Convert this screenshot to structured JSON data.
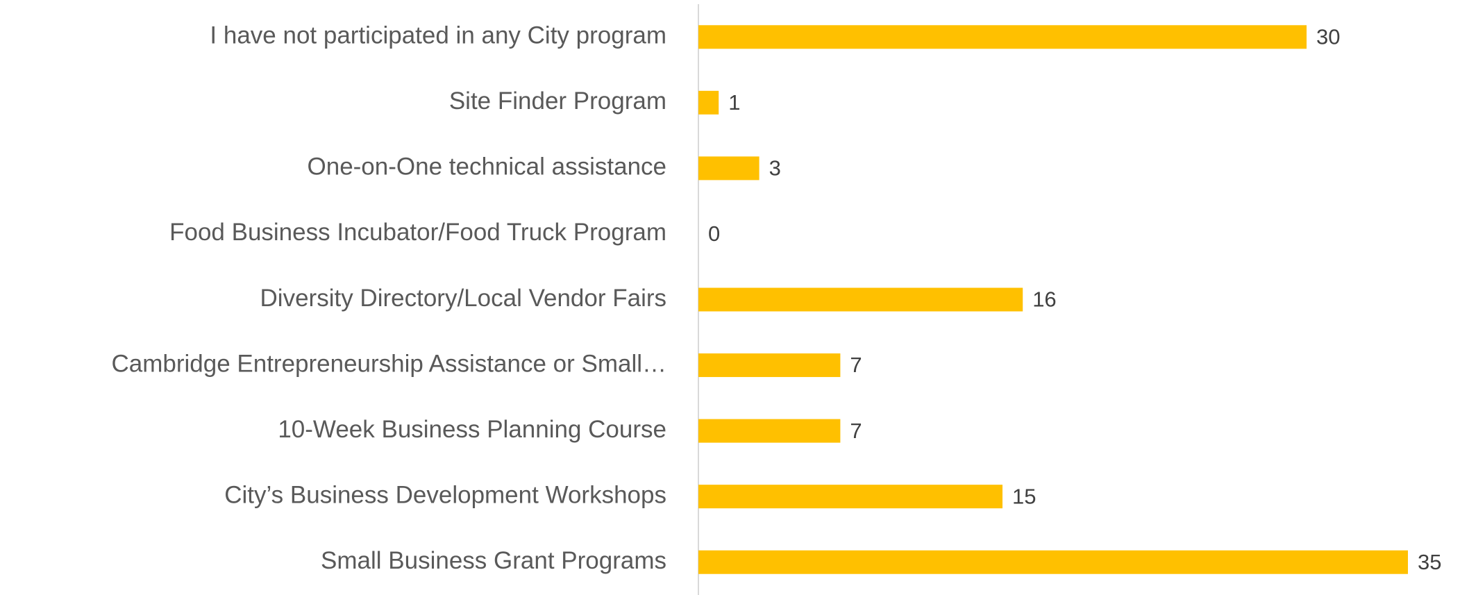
{
  "chart_data": {
    "type": "bar",
    "orientation": "horizontal",
    "categories": [
      "I have not participated in any City program",
      "Site Finder Program",
      "One-on-One technical assistance",
      "Food Business Incubator/Food Truck Program",
      "Diversity Directory/Local Vendor Fairs",
      "Cambridge Entrepreneurship Assistance or Small…",
      "10-Week Business Planning Course",
      "City’s Business Development Workshops",
      "Small Business Grant Programs"
    ],
    "values": [
      30,
      1,
      3,
      0,
      16,
      7,
      7,
      15,
      35
    ],
    "color": "#ffc000"
  }
}
